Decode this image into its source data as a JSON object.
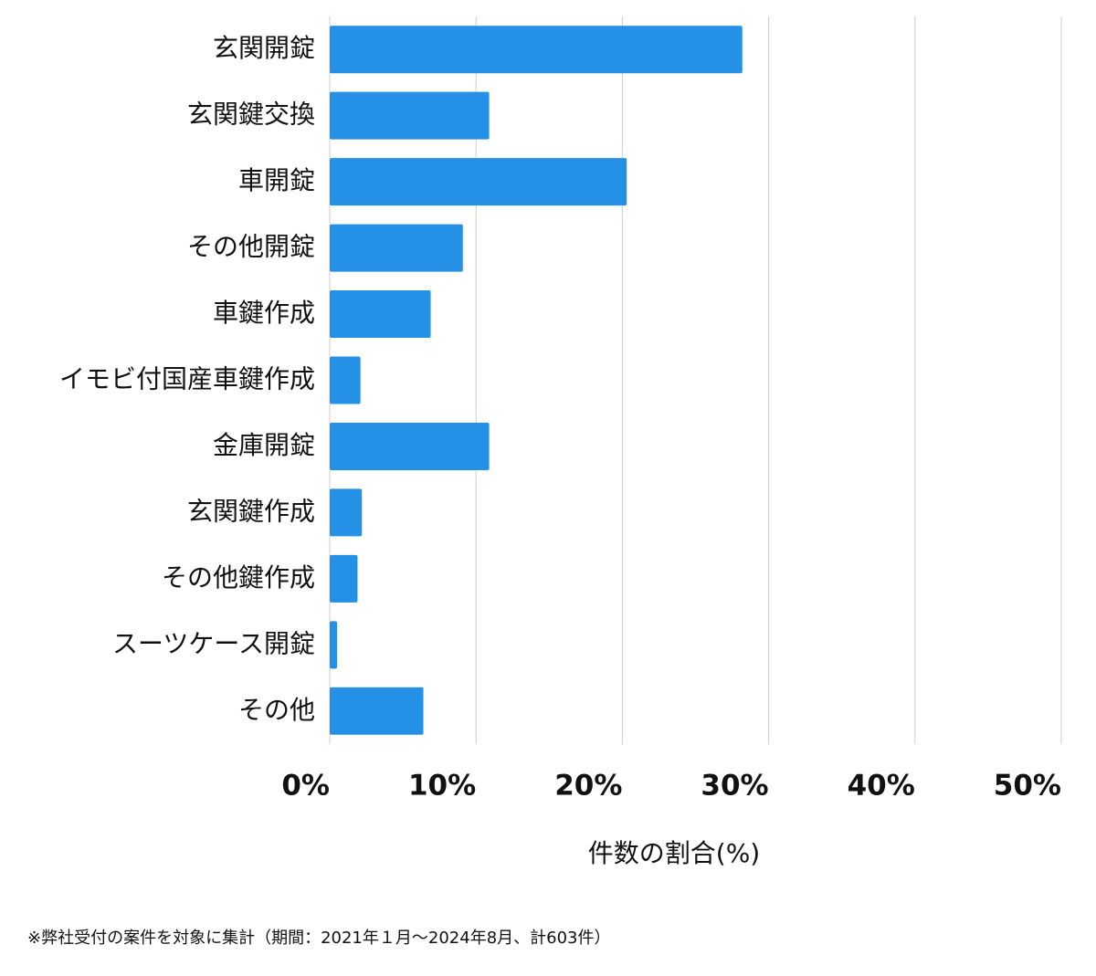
{
  "chart_data": {
    "type": "bar",
    "orientation": "horizontal",
    "categories": [
      "玄関開錠",
      "玄関鍵交換",
      "車開錠",
      "その他開錠",
      "車鍵作成",
      "イモビ付国産車鍵作成",
      "金庫開錠",
      "玄関鍵作成",
      "その他鍵作成",
      "スーツケース開錠",
      "その他"
    ],
    "values": [
      28.2,
      10.9,
      20.3,
      9.1,
      6.9,
      2.1,
      10.9,
      2.2,
      1.9,
      0.5,
      6.4
    ],
    "color": "#2491e6",
    "xlim": [
      0,
      50
    ],
    "xticks": [
      {
        "value": 0,
        "label": "0%"
      },
      {
        "value": 10,
        "label": "10%"
      },
      {
        "value": 20,
        "label": "20%"
      },
      {
        "value": 30,
        "label": "30%"
      },
      {
        "value": 40,
        "label": "40%"
      },
      {
        "value": 50,
        "label": "50%"
      }
    ],
    "grid": true,
    "xlabel": "件数の割合(%)",
    "note": "※弊社受付の案件を対象に集計（期間：2021年１月〜2024年8月、計603件）"
  }
}
